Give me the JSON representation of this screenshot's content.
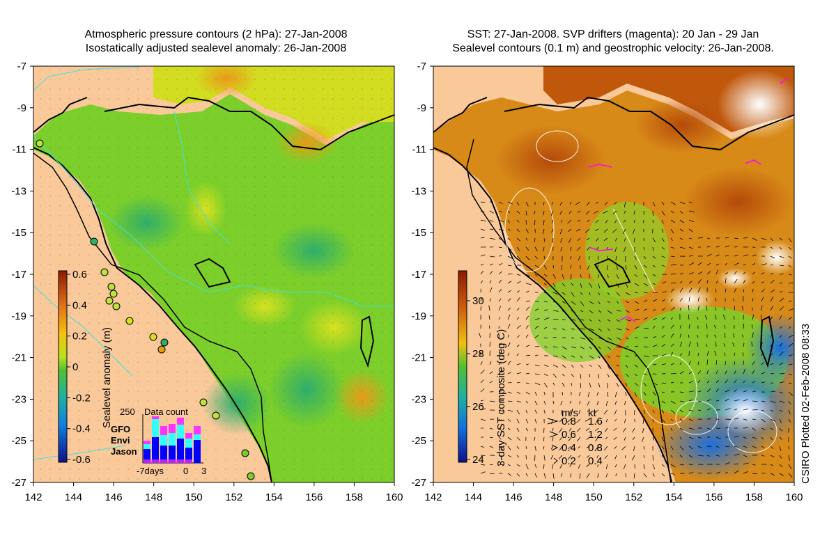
{
  "left_panel": {
    "title_line1": "Atmospheric pressure contours (2 hPa): 27-Jan-2008",
    "title_line2": "Isostatically adjusted sealevel anomaly: 26-Jan-2008",
    "colorbar_label": "Sealevel anomaly (m)",
    "colorbar_ticks": [
      "0.6",
      "0.4",
      "0.2",
      "0",
      "-0.2",
      "-0.4",
      "-0.6"
    ],
    "colors": {
      "land": "#f9c99a",
      "sea_mid": "#7ccf2a",
      "sea_high": "#e99a1a",
      "sea_low": "#2fae6a",
      "coast": "#000000",
      "pressure": "#40e0e0"
    },
    "inset": {
      "title": "Data count",
      "y_tick": "250",
      "legend": [
        {
          "name": "GFO",
          "color": "#ff33ff"
        },
        {
          "name": "Envi",
          "color": "#33ffff"
        },
        {
          "name": "Jason",
          "color": "#0000ff"
        }
      ],
      "x_ticks": [
        "-7days",
        "0",
        "3"
      ]
    }
  },
  "right_panel": {
    "title_line1": "SST: 27-Jan-2008. SVP drifters (magenta): 20 Jan - 29 Jan",
    "title_line2": "Sealevel contours (0.1 m) and geostrophic velocity: 26-Jan-2008.",
    "colorbar_label": "3-day SST composite (deg C)",
    "colorbar_ticks": [
      "30",
      "28",
      "26",
      "24"
    ],
    "colors": {
      "land": "#f9c99a",
      "sst_hot": "#c0580c",
      "sst_mid": "#7ccf2a",
      "sst_cool": "#1e90ff",
      "cloud": "#ffffff",
      "drifter": "#ff00ff"
    },
    "velocity_key": {
      "header_ms": "m/s",
      "header_kt": "kt",
      "rows": [
        {
          "ms": "0.8",
          "kt": "1.6"
        },
        {
          "ms": "0.6",
          "kt": "1.2"
        },
        {
          "ms": "0.4",
          "kt": "0.8"
        },
        {
          "ms": "0.2",
          "kt": "0.4"
        }
      ]
    }
  },
  "axes": {
    "lat_ticks": [
      "-7",
      "-9",
      "-11",
      "-13",
      "-15",
      "-17",
      "-19",
      "-21",
      "-23",
      "-25",
      "-27"
    ],
    "lon_ticks": [
      "142",
      "144",
      "146",
      "148",
      "150",
      "152",
      "154",
      "156",
      "158",
      "160"
    ]
  },
  "credit": "CSIRO Plotted 02-Feb-2008 08:33"
}
